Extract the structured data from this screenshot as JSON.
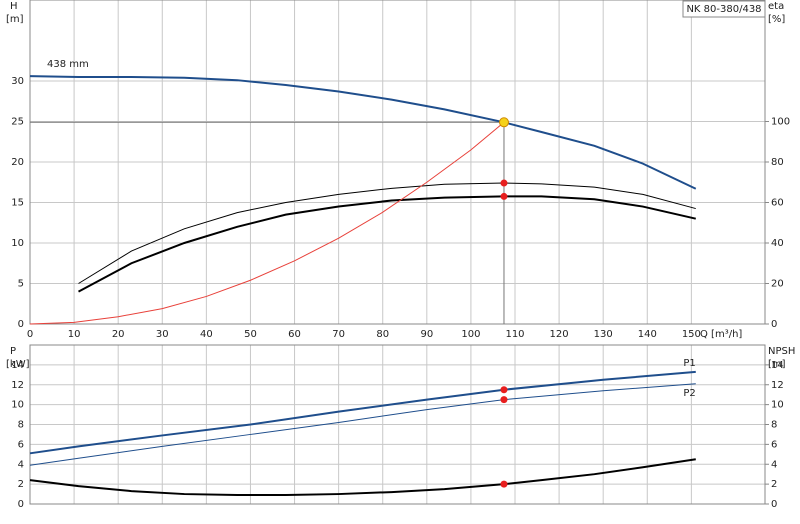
{
  "chart_data": [
    {
      "type": "line",
      "title": "NK 80-380/438",
      "ylabel": "H",
      "yunit": "[m]",
      "y2label": "eta",
      "y2unit": "[%]",
      "xlabel": "Q [m³/h]",
      "xlim": [
        0,
        166.7
      ],
      "xticks": [
        0,
        10,
        20,
        30,
        40,
        50,
        60,
        70,
        80,
        90,
        100,
        110,
        120,
        130,
        140,
        150
      ],
      "ylim": [
        0,
        40
      ],
      "yticks": [
        0,
        5,
        10,
        15,
        20,
        25,
        30
      ],
      "y2lim": [
        0,
        160
      ],
      "y2ticks": [
        0,
        20,
        40,
        60,
        80,
        100
      ],
      "grid": true,
      "duty_point": {
        "x": 107.5,
        "y": 24.9
      },
      "series": [
        {
          "name": "438 mm",
          "color": "#1f4e8c",
          "x": [
            0,
            11,
            23,
            35,
            47,
            58,
            70,
            82,
            94,
            107.5,
            116,
            128,
            139,
            151
          ],
          "values": [
            30.6,
            30.5,
            30.5,
            30.4,
            30.1,
            29.5,
            28.7,
            27.7,
            26.5,
            24.9,
            23.7,
            22.0,
            19.8,
            16.7
          ]
        },
        {
          "color": "#000000",
          "axis": "y2",
          "x": [
            11,
            23,
            35,
            47,
            58,
            70,
            82,
            94,
            107.5,
            116,
            128,
            139,
            151
          ],
          "values": [
            20,
            36,
            47,
            55,
            60,
            64,
            67,
            69,
            69.6,
            69.2,
            67.6,
            64,
            57
          ]
        },
        {
          "color": "#000000",
          "axis": "y2",
          "x": [
            11,
            23,
            35,
            47,
            58,
            70,
            82,
            94,
            107.5,
            116,
            128,
            139,
            151
          ],
          "values": [
            16,
            30,
            40,
            48,
            54,
            58,
            61,
            62.4,
            63,
            63,
            61.6,
            58,
            52
          ]
        },
        {
          "color": "#e8413a",
          "x": [
            0,
            10,
            20,
            30,
            40,
            50,
            60,
            70,
            80,
            90,
            100,
            107.5
          ],
          "values": [
            0,
            0.2,
            0.9,
            1.9,
            3.4,
            5.4,
            7.8,
            10.6,
            13.8,
            17.5,
            21.5,
            24.9
          ]
        }
      ]
    },
    {
      "type": "line",
      "ylabel": "P",
      "yunit": "[kW]",
      "y2label": "NPSH",
      "y2unit": "[m]",
      "ylim": [
        0,
        16
      ],
      "yticks": [
        0,
        2,
        4,
        6,
        8,
        10,
        12,
        14
      ],
      "y2lim": [
        0,
        16
      ],
      "y2ticks": [
        0,
        2,
        4,
        6,
        8,
        10,
        12,
        14
      ],
      "grid": true,
      "series": [
        {
          "name": "P1",
          "color": "#1f4e8c",
          "x": [
            0,
            11,
            30,
            50,
            70,
            90,
            107.5,
            130,
            151
          ],
          "values": [
            5.1,
            5.8,
            6.9,
            8.0,
            9.3,
            10.5,
            11.5,
            12.5,
            13.3
          ]
        },
        {
          "name": "P2",
          "color": "#1f4e8c",
          "x": [
            0,
            11,
            30,
            50,
            70,
            90,
            107.5,
            130,
            151
          ],
          "values": [
            3.9,
            4.6,
            5.8,
            7.0,
            8.2,
            9.5,
            10.5,
            11.4,
            12.1
          ]
        },
        {
          "color": "#000000",
          "axis": "y2",
          "x": [
            0,
            11,
            23,
            35,
            47,
            58,
            70,
            82,
            94,
            107.5,
            116,
            128,
            139,
            151
          ],
          "values": [
            2.4,
            1.8,
            1.3,
            1.0,
            0.9,
            0.9,
            1.0,
            1.2,
            1.5,
            2.0,
            2.4,
            3.0,
            3.7,
            4.5
          ]
        }
      ]
    }
  ]
}
